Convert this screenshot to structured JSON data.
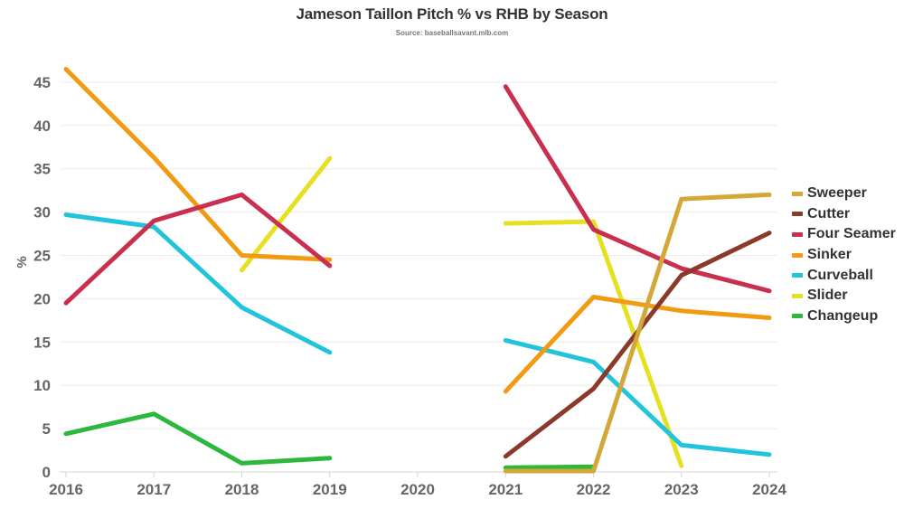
{
  "header": {
    "title": "Jameson Taillon Pitch % vs RHB by Season",
    "subtitle": "Source: baseballsavant.mlb.com"
  },
  "chart_data": {
    "type": "line",
    "title": "Jameson Taillon Pitch % vs RHB by Season",
    "subtitle": "Source: baseballsavant.mlb.com",
    "xlabel": "",
    "ylabel": "%",
    "x": [
      "2016",
      "2017",
      "2018",
      "2019",
      "2020",
      "2021",
      "2022",
      "2023",
      "2024"
    ],
    "ylim": [
      0,
      47
    ],
    "yticks": [
      0,
      5,
      10,
      15,
      20,
      25,
      30,
      35,
      40,
      45
    ],
    "grid": true,
    "legend_position": "right",
    "series": [
      {
        "name": "Sweeper",
        "color": "#d4a838",
        "values": [
          null,
          null,
          null,
          null,
          null,
          0.1,
          0.1,
          31.5,
          32.0
        ]
      },
      {
        "name": "Cutter",
        "color": "#8b3a2a",
        "values": [
          null,
          null,
          null,
          null,
          null,
          1.8,
          9.6,
          22.7,
          27.6
        ]
      },
      {
        "name": "Four Seamer",
        "color": "#c9304f",
        "values": [
          19.5,
          29.0,
          32.0,
          23.8,
          null,
          44.5,
          28.0,
          23.5,
          20.9
        ]
      },
      {
        "name": "Sinker",
        "color": "#f29b12",
        "values": [
          46.5,
          36.3,
          25.0,
          24.5,
          null,
          9.3,
          20.2,
          18.6,
          17.8
        ]
      },
      {
        "name": "Curveball",
        "color": "#22c4dc",
        "values": [
          29.7,
          28.3,
          19.0,
          13.8,
          null,
          15.2,
          12.7,
          3.1,
          2.0
        ]
      },
      {
        "name": "Slider",
        "color": "#e6e022",
        "values": [
          null,
          null,
          23.3,
          36.2,
          null,
          28.7,
          28.9,
          0.7,
          null
        ]
      },
      {
        "name": "Changeup",
        "color": "#2db83d",
        "values": [
          4.4,
          6.7,
          1.0,
          1.6,
          null,
          0.5,
          0.6,
          null,
          null
        ]
      }
    ]
  },
  "legend": {
    "items": [
      {
        "label": "Sweeper",
        "color": "#d4a838"
      },
      {
        "label": "Cutter",
        "color": "#8b3a2a"
      },
      {
        "label": "Four Seamer",
        "color": "#c9304f"
      },
      {
        "label": "Sinker",
        "color": "#f29b12"
      },
      {
        "label": "Curveball",
        "color": "#22c4dc"
      },
      {
        "label": "Slider",
        "color": "#e6e022"
      },
      {
        "label": "Changeup",
        "color": "#2db83d"
      }
    ]
  }
}
